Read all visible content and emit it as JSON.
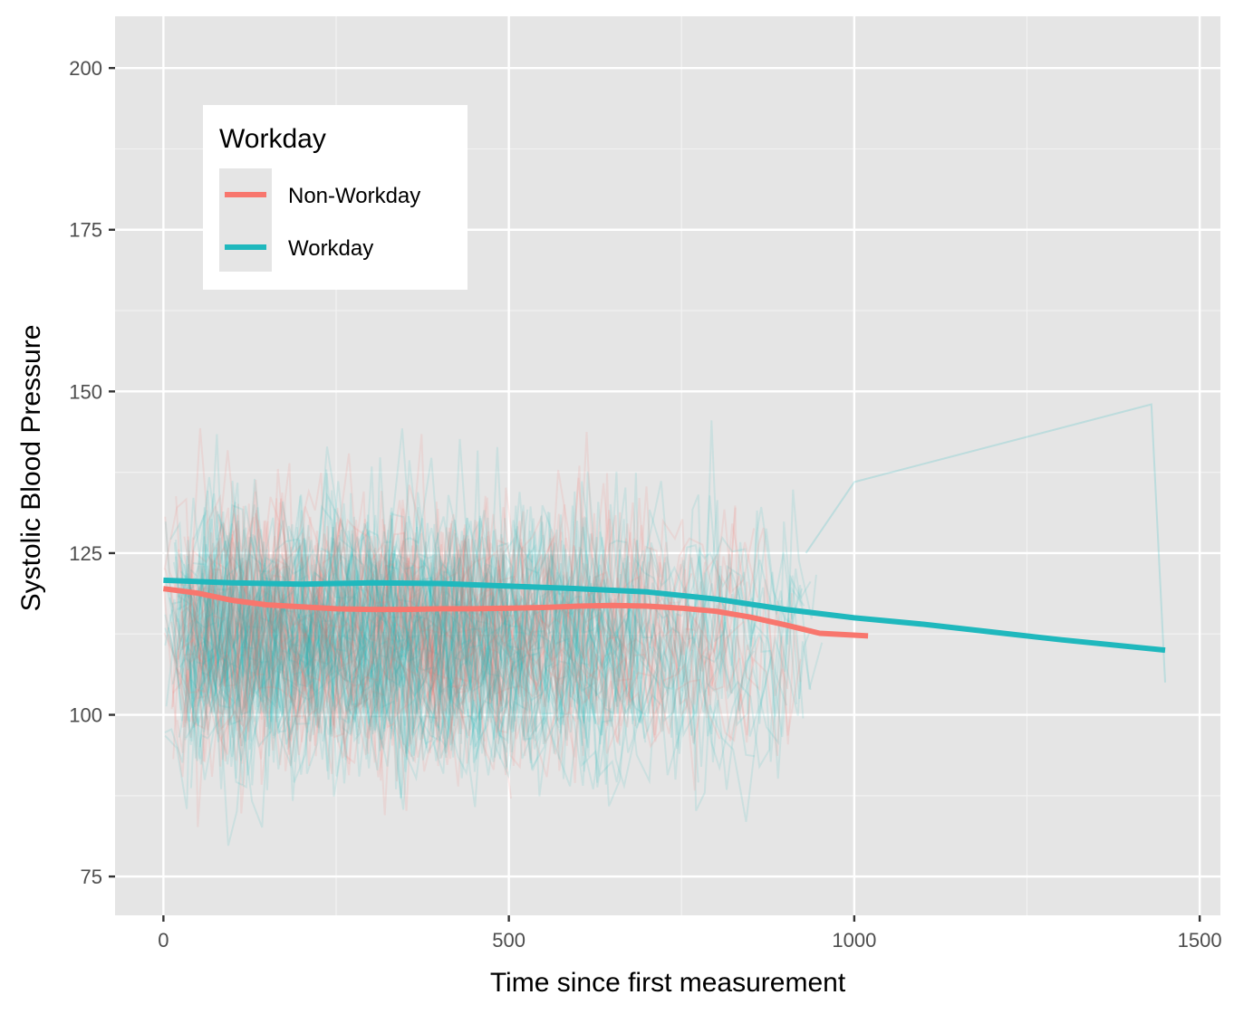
{
  "chart_data": {
    "type": "line",
    "xlabel": "Time since first measurement",
    "ylabel": "Systolic Blood Pressure",
    "xlim": [
      -70,
      1530
    ],
    "ylim": [
      69,
      208
    ],
    "x_ticks": [
      0,
      500,
      1000,
      1500
    ],
    "x_tick_labels": [
      "0",
      "500",
      "1000",
      "1500"
    ],
    "y_ticks": [
      75,
      100,
      125,
      150,
      175,
      200
    ],
    "y_tick_labels": [
      "75",
      "100",
      "125",
      "150",
      "175",
      "200"
    ],
    "grid": true,
    "background": "#e5e5e5",
    "legend": {
      "title": "Workday",
      "placement": "top-left",
      "entries": [
        {
          "label": "Non-Workday",
          "color": "#f8766d"
        },
        {
          "label": "Workday",
          "color": "#1fb8bd"
        }
      ]
    },
    "series": [
      {
        "name": "Non-Workday",
        "color": "#f8766d",
        "x": [
          0,
          50,
          100,
          150,
          200,
          250,
          300,
          350,
          400,
          450,
          500,
          550,
          600,
          650,
          700,
          750,
          800,
          850,
          900,
          950,
          1020
        ],
        "values": [
          119.5,
          118.8,
          117.7,
          117.0,
          116.7,
          116.4,
          116.3,
          116.3,
          116.4,
          116.4,
          116.5,
          116.6,
          116.8,
          116.9,
          116.8,
          116.5,
          116.0,
          115.1,
          113.9,
          112.6,
          112.2
        ]
      },
      {
        "name": "Workday",
        "color": "#1fb8bd",
        "x": [
          0,
          100,
          200,
          300,
          400,
          500,
          600,
          700,
          800,
          900,
          1000,
          1100,
          1200,
          1300,
          1450
        ],
        "values": [
          120.8,
          120.4,
          120.2,
          120.4,
          120.3,
          119.9,
          119.5,
          119.0,
          117.9,
          116.3,
          115.0,
          114.0,
          112.8,
          111.6,
          110.0
        ]
      }
    ]
  }
}
